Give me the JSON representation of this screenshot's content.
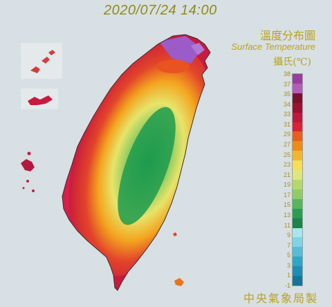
{
  "timestamp": "2020/07/24 14:00",
  "title": {
    "zh": "溫度分布圖",
    "en": "Surface Temperature",
    "unit": "攝氏(℃)"
  },
  "footer": "中央氣象局製",
  "legend": {
    "labels": [
      "38",
      "37",
      "35",
      "34",
      "33",
      "31",
      "29",
      "27",
      "25",
      "23",
      "21",
      "19",
      "17",
      "15",
      "13",
      "11",
      "9",
      "7",
      "5",
      "3",
      "1",
      "-1"
    ],
    "colors": [
      "#9b3c9f",
      "#b45cbc",
      "#7d0f2e",
      "#9c1030",
      "#c0183c",
      "#dc2135",
      "#e95e1b",
      "#f08b12",
      "#f4b52e",
      "#f6dd5a",
      "#dde77a",
      "#b5d86a",
      "#8fcc63",
      "#56b65c",
      "#2a9d52",
      "#1b8447",
      "#a8e6ee",
      "#7fd3e3",
      "#55bdd6",
      "#2ea6c6",
      "#1e8db3",
      "#137699"
    ]
  },
  "icons": {
    "map": "taiwan-temperature-map"
  }
}
